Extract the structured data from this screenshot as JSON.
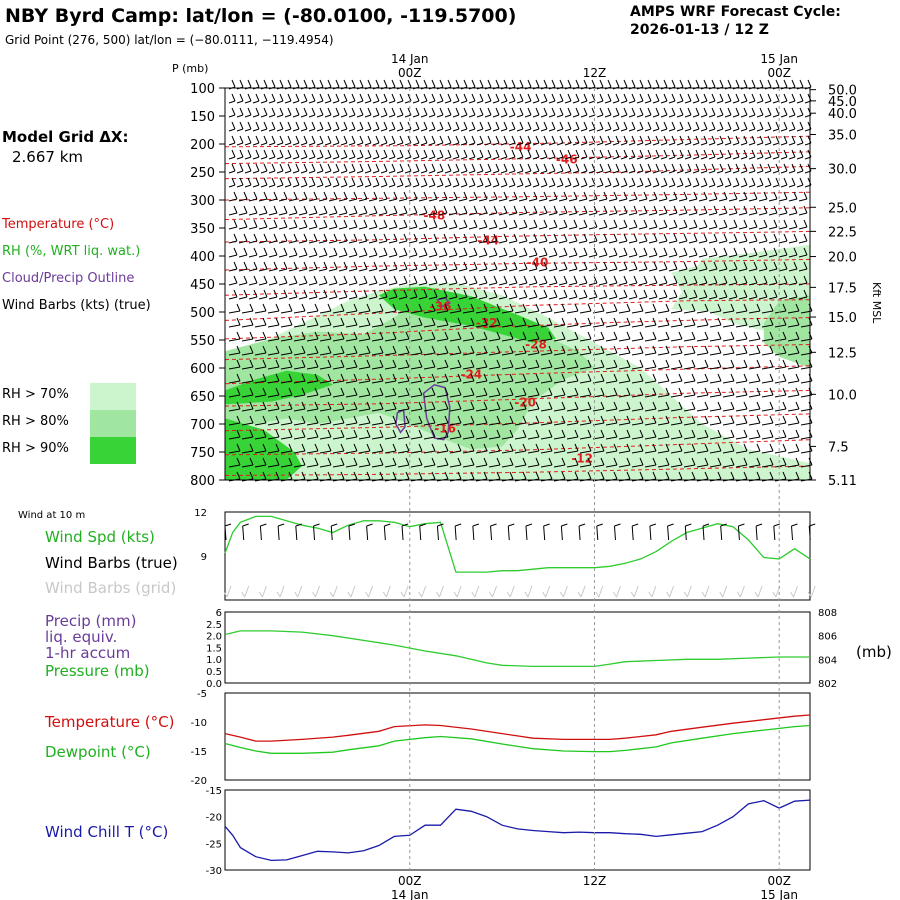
{
  "header": {
    "title": "NBY Byrd Camp:  lat/lon = (-80.0100, -119.5700)",
    "grid_point": "Grid Point (276, 500) lat/lon = (−80.0111, −119.4954)",
    "forecast_label": "AMPS WRF Forecast Cycle:",
    "forecast_cycle": "2026-01-13 / 12  Z"
  },
  "legend": {
    "model_grid_label": "Model Grid ΔX:",
    "model_grid_value": "2.667 km",
    "temperature": "Temperature (°C)",
    "rh": "RH (%, WRT liq. wat.)",
    "cloud": "Cloud/Precip Outline",
    "wind": "Wind Barbs (kts) (true)",
    "rh70": "RH > 70%",
    "rh80": "RH > 80%",
    "rh90": "RH > 90%"
  },
  "time_axis": {
    "top_labels": [
      {
        "date": "14 Jan",
        "hour": "00Z",
        "t": 12
      },
      {
        "date": "",
        "hour": "12Z",
        "t": 24
      },
      {
        "date": "15 Jan",
        "hour": "00Z",
        "t": 36
      }
    ],
    "bottom_labels": [
      {
        "date": "14 Jan",
        "hour": "00Z",
        "t": 12
      },
      {
        "date": "",
        "hour": "12Z",
        "t": 24
      },
      {
        "date": "15 Jan",
        "hour": "00Z",
        "t": 36
      }
    ]
  },
  "colors": {
    "rh70": "#cdf5cd",
    "rh80": "#a0e5a0",
    "rh90": "#37d337",
    "temp_contour": "#e02020",
    "cloud": "#6a3c9a",
    "wind_speed": "#2ecc2e",
    "pressure": "#2ecc2e",
    "temperature": "#d01010",
    "dewpoint": "#20c820",
    "windchill": "#1a1aaa",
    "grid_barbs": "#c8c8c8"
  },
  "chart_data": [
    {
      "type": "contour",
      "name": "cross-section",
      "x_range_hours": [
        0,
        38
      ],
      "y_label_left": "P (mb)",
      "y_label_right": "Kft MSL",
      "p_ticks": [
        100,
        150,
        200,
        250,
        300,
        350,
        400,
        450,
        500,
        550,
        600,
        650,
        700,
        750,
        800
      ],
      "kft_ticks": [
        "50.0",
        "45.0",
        "40.0",
        "35.0",
        "30.0",
        "25.0",
        "22.5",
        "20.0",
        "17.5",
        "15.0",
        "12.5",
        "10.0",
        "7.5",
        "5.11"
      ],
      "kft_at_p": [
        103,
        123,
        145,
        183,
        244,
        313,
        356,
        401,
        456,
        509,
        572,
        647,
        740,
        800
      ],
      "temperature_contours": [
        {
          "label": "-44",
          "t": 19.2,
          "p": 205
        },
        {
          "label": "-46",
          "t": 22.2,
          "p": 228
        },
        {
          "label": "-48",
          "t": 13.6,
          "p": 328
        },
        {
          "label": "-44",
          "t": 17.1,
          "p": 372
        },
        {
          "label": "-40",
          "t": 20.3,
          "p": 412
        },
        {
          "label": "-36",
          "t": 14.0,
          "p": 490
        },
        {
          "label": "-32",
          "t": 17.0,
          "p": 520
        },
        {
          "label": "-28",
          "t": 20.2,
          "p": 558
        },
        {
          "label": "-24",
          "t": 16.0,
          "p": 612
        },
        {
          "label": "-20",
          "t": 19.5,
          "p": 662
        },
        {
          "label": "-16",
          "t": 14.3,
          "p": 708
        },
        {
          "label": "-12",
          "t": 23.2,
          "p": 762
        }
      ],
      "rh_levels": [
        "RH > 70%",
        "RH > 80%",
        "RH > 90%"
      ]
    },
    {
      "type": "line",
      "name": "wind-10m",
      "panel_title": "Wind at 10 m",
      "series_label": "Wind Spd (kts)",
      "barbs_true_label": "Wind Barbs (true)",
      "barbs_grid_label": "Wind Barbs (grid)",
      "y_ticks": [
        12,
        9
      ],
      "ylim": [
        6,
        12
      ],
      "x": [
        0,
        0.5,
        1,
        2,
        3,
        4,
        5,
        6,
        7,
        8,
        9,
        10,
        11,
        12,
        13,
        14,
        15,
        16,
        17,
        18,
        19,
        20,
        21,
        22,
        23,
        24,
        25,
        26,
        27,
        28,
        29,
        30,
        31,
        32,
        33,
        34,
        35,
        36,
        37,
        38
      ],
      "values": [
        9.2,
        10.6,
        11.3,
        11.7,
        11.7,
        11.4,
        11.1,
        10.9,
        10.6,
        11.1,
        11.4,
        11.4,
        11.3,
        11.0,
        11.2,
        11.3,
        7.9,
        7.9,
        7.9,
        8.0,
        8.0,
        8.1,
        8.2,
        8.2,
        8.2,
        8.2,
        8.3,
        8.5,
        8.8,
        9.3,
        10.0,
        10.6,
        10.9,
        11.2,
        11.0,
        10.1,
        8.9,
        8.8,
        9.5,
        8.8
      ]
    },
    {
      "type": "line",
      "name": "precip-pressure",
      "precip_label": "Precip (mm)",
      "precip_sub1": "liq. equiv.",
      "precip_sub2": "1-hr accum",
      "pressure_label": "Pressure (mb)",
      "precip_ticks": [
        "6",
        "2.5",
        "2.0",
        "1.5",
        "1.0",
        "0.5",
        "0.0"
      ],
      "pressure_ticks": [
        808,
        806,
        804,
        802
      ],
      "pressure_unit": "(mb)",
      "pressure_ylim": [
        802,
        808
      ],
      "x": [
        0,
        1,
        3,
        5,
        7,
        9,
        11,
        13,
        15,
        17,
        18,
        20,
        22,
        24,
        25,
        26,
        28,
        30,
        32,
        34,
        36,
        38
      ],
      "pressure": [
        806.1,
        806.4,
        806.4,
        806.3,
        806.0,
        805.6,
        805.2,
        804.7,
        804.3,
        803.7,
        803.5,
        803.4,
        803.4,
        803.4,
        803.6,
        803.8,
        803.9,
        804.0,
        804.0,
        804.1,
        804.2,
        804.2
      ],
      "precip": [
        0,
        0,
        0,
        0,
        0,
        0,
        0,
        0,
        0,
        0,
        0,
        0,
        0,
        0,
        0,
        0,
        0,
        0,
        0,
        0,
        0,
        0
      ]
    },
    {
      "type": "line",
      "name": "temperature-dewpoint",
      "series": [
        {
          "name": "Temperature (°C)",
          "values": [
            -12.0,
            -12.6,
            -13.3,
            -13.3,
            -13.0,
            -12.6,
            -12.3,
            -11.6,
            -10.8,
            -10.5,
            -10.6,
            -11.2,
            -12.0,
            -12.8,
            -13.0,
            -13.0,
            -13.0,
            -12.8,
            -12.2,
            -11.6,
            -10.9,
            -10.2,
            -9.6,
            -9.0,
            -8.8
          ]
        },
        {
          "name": "Dewpoint (°C)",
          "values": [
            -13.7,
            -14.4,
            -15.0,
            -15.4,
            -15.4,
            -15.2,
            -14.8,
            -14.1,
            -13.3,
            -12.7,
            -12.5,
            -12.9,
            -13.8,
            -14.6,
            -15.0,
            -15.1,
            -15.1,
            -14.9,
            -14.3,
            -13.6,
            -12.8,
            -12.0,
            -11.4,
            -10.8,
            -10.6
          ]
        }
      ],
      "x": [
        0,
        1,
        2,
        3,
        5,
        7,
        8,
        10,
        11,
        13,
        14,
        16,
        18,
        20,
        22,
        24,
        25,
        26,
        28,
        29,
        31,
        33,
        35,
        37,
        38
      ],
      "y_ticks": [
        -5,
        -10,
        -15,
        -20
      ],
      "ylim": [
        -20,
        -5
      ]
    },
    {
      "type": "line",
      "name": "wind-chill",
      "series_label": "Wind Chill T (°C)",
      "x": [
        0,
        0.5,
        1,
        2,
        3,
        4,
        5,
        6,
        7,
        8,
        9,
        10,
        11,
        12,
        13,
        14,
        15,
        16,
        17,
        18,
        19,
        20,
        21,
        22,
        23,
        24,
        25,
        26,
        27,
        28,
        29,
        30,
        31,
        32,
        33,
        34,
        35,
        36,
        37,
        38
      ],
      "values": [
        -21.8,
        -23.5,
        -25.8,
        -27.5,
        -28.2,
        -28.1,
        -27.3,
        -26.5,
        -26.6,
        -26.8,
        -26.4,
        -25.4,
        -23.7,
        -23.5,
        -21.6,
        -21.6,
        -18.6,
        -19.0,
        -20.0,
        -21.6,
        -22.3,
        -22.6,
        -22.8,
        -23.0,
        -22.9,
        -23.0,
        -23.0,
        -23.2,
        -23.3,
        -23.7,
        -23.4,
        -23.1,
        -22.8,
        -21.6,
        -20.0,
        -17.6,
        -17.0,
        -18.4,
        -17.1,
        -16.9
      ],
      "y_ticks": [
        -15,
        -20,
        -25,
        -30
      ],
      "ylim": [
        -30,
        -15
      ]
    }
  ]
}
